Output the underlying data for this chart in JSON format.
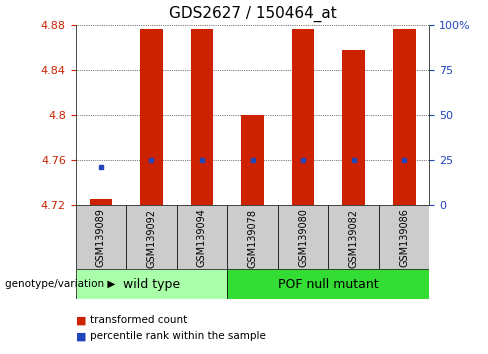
{
  "title": "GDS2627 / 150464_at",
  "samples": [
    "GSM139089",
    "GSM139092",
    "GSM139094",
    "GSM139078",
    "GSM139080",
    "GSM139082",
    "GSM139086"
  ],
  "red_values": [
    4.726,
    4.876,
    4.876,
    4.8,
    4.876,
    4.858,
    4.876
  ],
  "blue_values": [
    4.754,
    4.76,
    4.76,
    4.76,
    4.76,
    4.76,
    4.76
  ],
  "y_min": 4.72,
  "y_max": 4.88,
  "y_ticks": [
    4.72,
    4.76,
    4.8,
    4.84,
    4.88
  ],
  "right_y_ticks": [
    0,
    25,
    50,
    75,
    100
  ],
  "right_y_labels": [
    "0",
    "25",
    "50",
    "75",
    "100%"
  ],
  "bar_color": "#cc2200",
  "blue_color": "#2244bb",
  "group1_label": "wild type",
  "group2_label": "POF null mutant",
  "group1_indices": [
    0,
    1,
    2
  ],
  "group2_indices": [
    3,
    4,
    5,
    6
  ],
  "group1_bg": "#aaffaa",
  "group2_bg": "#33dd33",
  "label_bg": "#cccccc",
  "genotype_label": "genotype/variation",
  "legend_red": "transformed count",
  "legend_blue": "percentile rank within the sample",
  "title_fontsize": 11,
  "tick_fontsize": 8,
  "sample_fontsize": 7,
  "group_fontsize": 9,
  "legend_fontsize": 7.5
}
